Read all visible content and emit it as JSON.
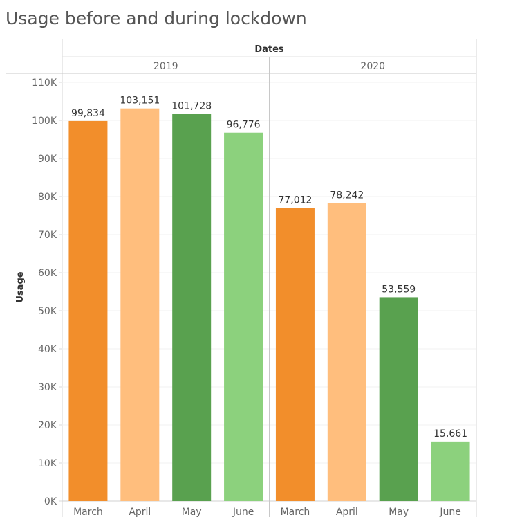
{
  "title": "Usage before and during lockdown",
  "chart_data": {
    "type": "bar",
    "title": "Usage before and during lockdown",
    "column_header_title": "Dates",
    "ylabel": "Usage",
    "ylim": [
      0,
      110000
    ],
    "y_ticks": [
      0,
      10000,
      20000,
      30000,
      40000,
      50000,
      60000,
      70000,
      80000,
      90000,
      100000,
      110000
    ],
    "y_tick_labels": [
      "0K",
      "10K",
      "20K",
      "30K",
      "40K",
      "50K",
      "60K",
      "70K",
      "80K",
      "90K",
      "100K",
      "110K"
    ],
    "grid": true,
    "legend": "none",
    "groups": [
      {
        "label": "2019",
        "categories": [
          "March",
          "April",
          "May",
          "June"
        ],
        "values": [
          99834,
          103151,
          101728,
          96776
        ],
        "value_labels": [
          "99,834",
          "103,151",
          "101,728",
          "96,776"
        ]
      },
      {
        "label": "2020",
        "categories": [
          "March",
          "April",
          "May",
          "June"
        ],
        "values": [
          77012,
          78242,
          53559,
          15661
        ],
        "value_labels": [
          "77,012",
          "78,242",
          "53,559",
          "15,661"
        ]
      }
    ],
    "category_colors": {
      "March": "#f28e2b",
      "April": "#ffbe7d",
      "May": "#59a14f",
      "June": "#8cd17d"
    }
  }
}
